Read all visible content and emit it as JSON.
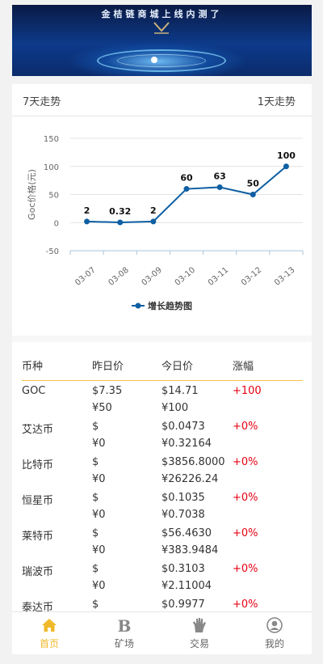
{
  "banner": {
    "title": "金桔链商城上线内测了"
  },
  "trend_tabs": {
    "left": "7天走势",
    "right": "1天走势"
  },
  "chart_data": {
    "type": "line",
    "x": [
      "03-07",
      "03-08",
      "03-09",
      "03-10",
      "03-11",
      "03-12",
      "03-13"
    ],
    "series": [
      {
        "name": "增长趋势图",
        "values": [
          2,
          0.32,
          2,
          60,
          63,
          50,
          100
        ],
        "color": "#0e5fa3"
      }
    ],
    "data_labels": [
      "2",
      "0.32",
      "2",
      "60",
      "63",
      "50",
      "100"
    ],
    "ylabel": "Goc价格(元)",
    "ylim": [
      -50,
      150
    ],
    "yticks": [
      "150",
      "100",
      "50",
      "0",
      "-50"
    ],
    "ytick_values": [
      150,
      100,
      50,
      0,
      -50
    ],
    "grid": true,
    "legend": "bottom"
  },
  "table": {
    "headers": [
      "币种",
      "昨日价",
      "今日价",
      "涨幅"
    ],
    "rows": [
      {
        "name": "GOC",
        "y_usd": "$7.35",
        "y_cny": "¥50",
        "t_usd": "$14.71",
        "t_cny": "¥100",
        "change": "+100"
      },
      {
        "name": "艾达币",
        "y_usd": "$",
        "y_cny": "¥0",
        "t_usd": "$0.0473",
        "t_cny": "¥0.32164",
        "change": "+0%"
      },
      {
        "name": "比特币",
        "y_usd": "$",
        "y_cny": "¥0",
        "t_usd": "$3856.8000",
        "t_cny": "¥26226.24",
        "change": "+0%"
      },
      {
        "name": "恒星币",
        "y_usd": "$",
        "y_cny": "¥0",
        "t_usd": "$0.1035",
        "t_cny": "¥0.7038",
        "change": "+0%"
      },
      {
        "name": "莱特币",
        "y_usd": "$",
        "y_cny": "¥0",
        "t_usd": "$56.4630",
        "t_cny": "¥383.9484",
        "change": "+0%"
      },
      {
        "name": "瑞波币",
        "y_usd": "$",
        "y_cny": "¥0",
        "t_usd": "$0.3103",
        "t_cny": "¥2.11004",
        "change": "+0%"
      },
      {
        "name": "泰达币",
        "y_usd": "$",
        "y_cny": "",
        "t_usd": "$0.9977",
        "t_cny": "",
        "change": "+0%"
      }
    ]
  },
  "nav": {
    "items": [
      {
        "label": "首页",
        "icon": "home-icon",
        "active": true
      },
      {
        "label": "矿场",
        "icon": "mine-b-icon",
        "active": false
      },
      {
        "label": "交易",
        "icon": "trade-hand-icon",
        "active": false
      },
      {
        "label": "我的",
        "icon": "profile-icon",
        "active": false
      }
    ],
    "active_color": "#f0b92b"
  }
}
